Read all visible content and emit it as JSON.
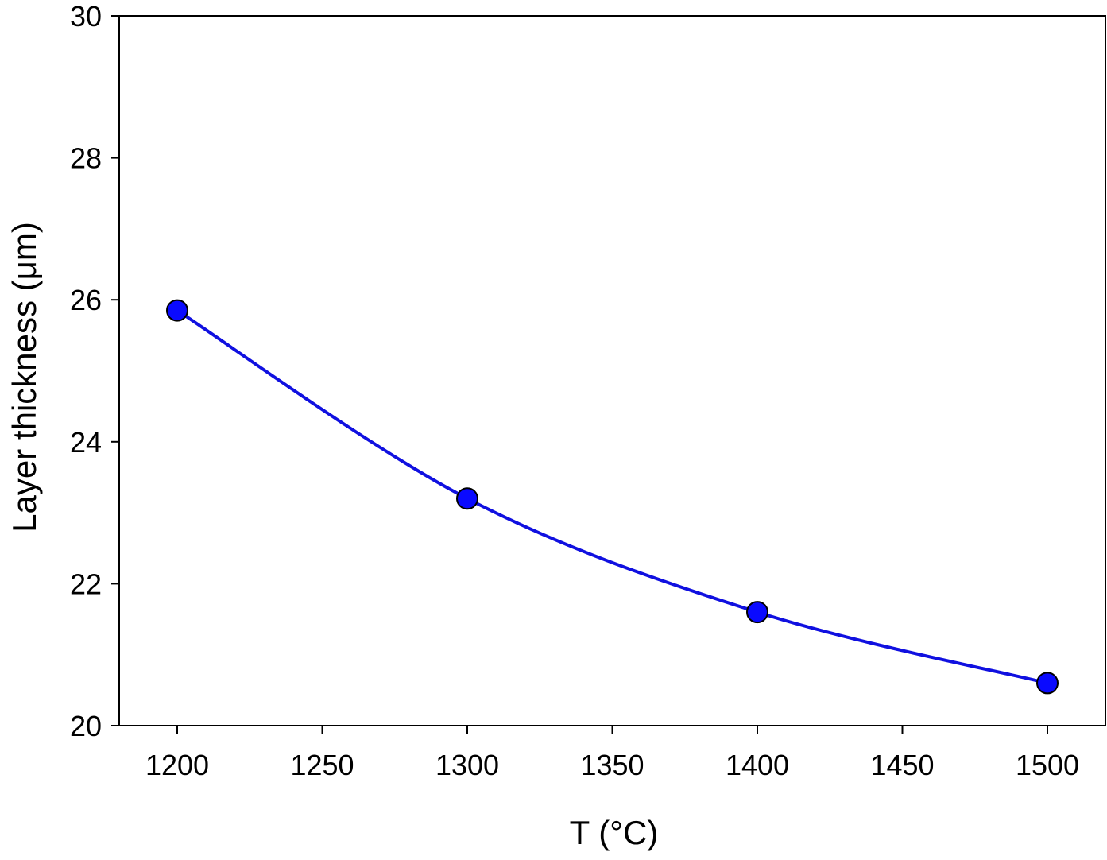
{
  "chart_data": {
    "type": "line",
    "title": "",
    "xlabel": "T (°C)",
    "ylabel": "Layer thickness (μm)",
    "xlim": [
      1180,
      1520
    ],
    "ylim": [
      20,
      30
    ],
    "xticks": [
      1200,
      1250,
      1300,
      1350,
      1400,
      1450,
      1500
    ],
    "yticks": [
      20,
      22,
      24,
      26,
      28,
      30
    ],
    "grid": false,
    "legend": "none",
    "series": [
      {
        "x": [
          1200,
          1300,
          1400,
          1500
        ],
        "y": [
          25.85,
          23.2,
          21.6,
          20.6
        ],
        "line_color": "#1010e0",
        "marker_color": "#0a0aff",
        "marker": "circle"
      }
    ]
  }
}
